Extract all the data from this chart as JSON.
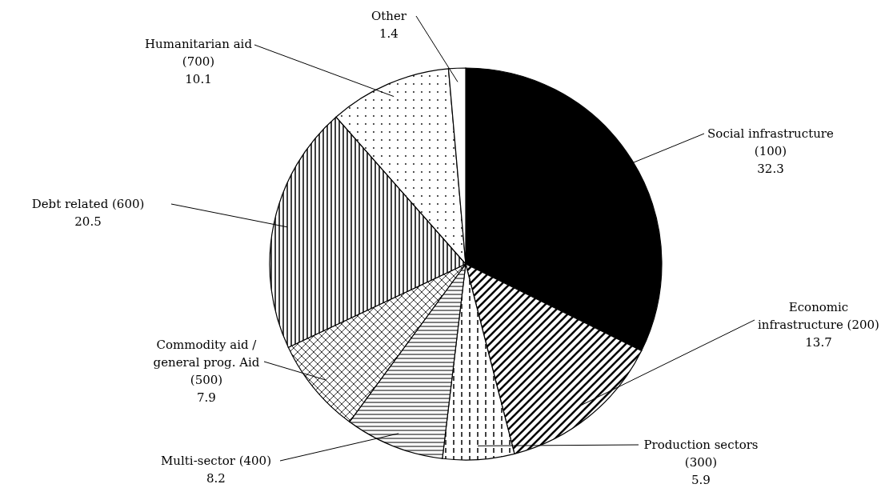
{
  "chart_data": {
    "type": "pie",
    "categories": [
      "Social infrastructure (100)",
      "Economic infrastructure (200)",
      "Production sectors (300)",
      "Multi-sector (400)",
      "Commodity aid / general prog. Aid (500)",
      "Debt related (600)",
      "Humanitarian aid (700)",
      "Other"
    ],
    "values": [
      32.3,
      13.7,
      5.9,
      8.2,
      7.9,
      20.5,
      10.1,
      1.4
    ],
    "colors": [
      "#000000",
      "#ffffff",
      "#ffffff",
      "#ffffff",
      "#ffffff",
      "#ffffff",
      "#ffffff",
      "#ffffff"
    ],
    "data_labels": true
  }
}
